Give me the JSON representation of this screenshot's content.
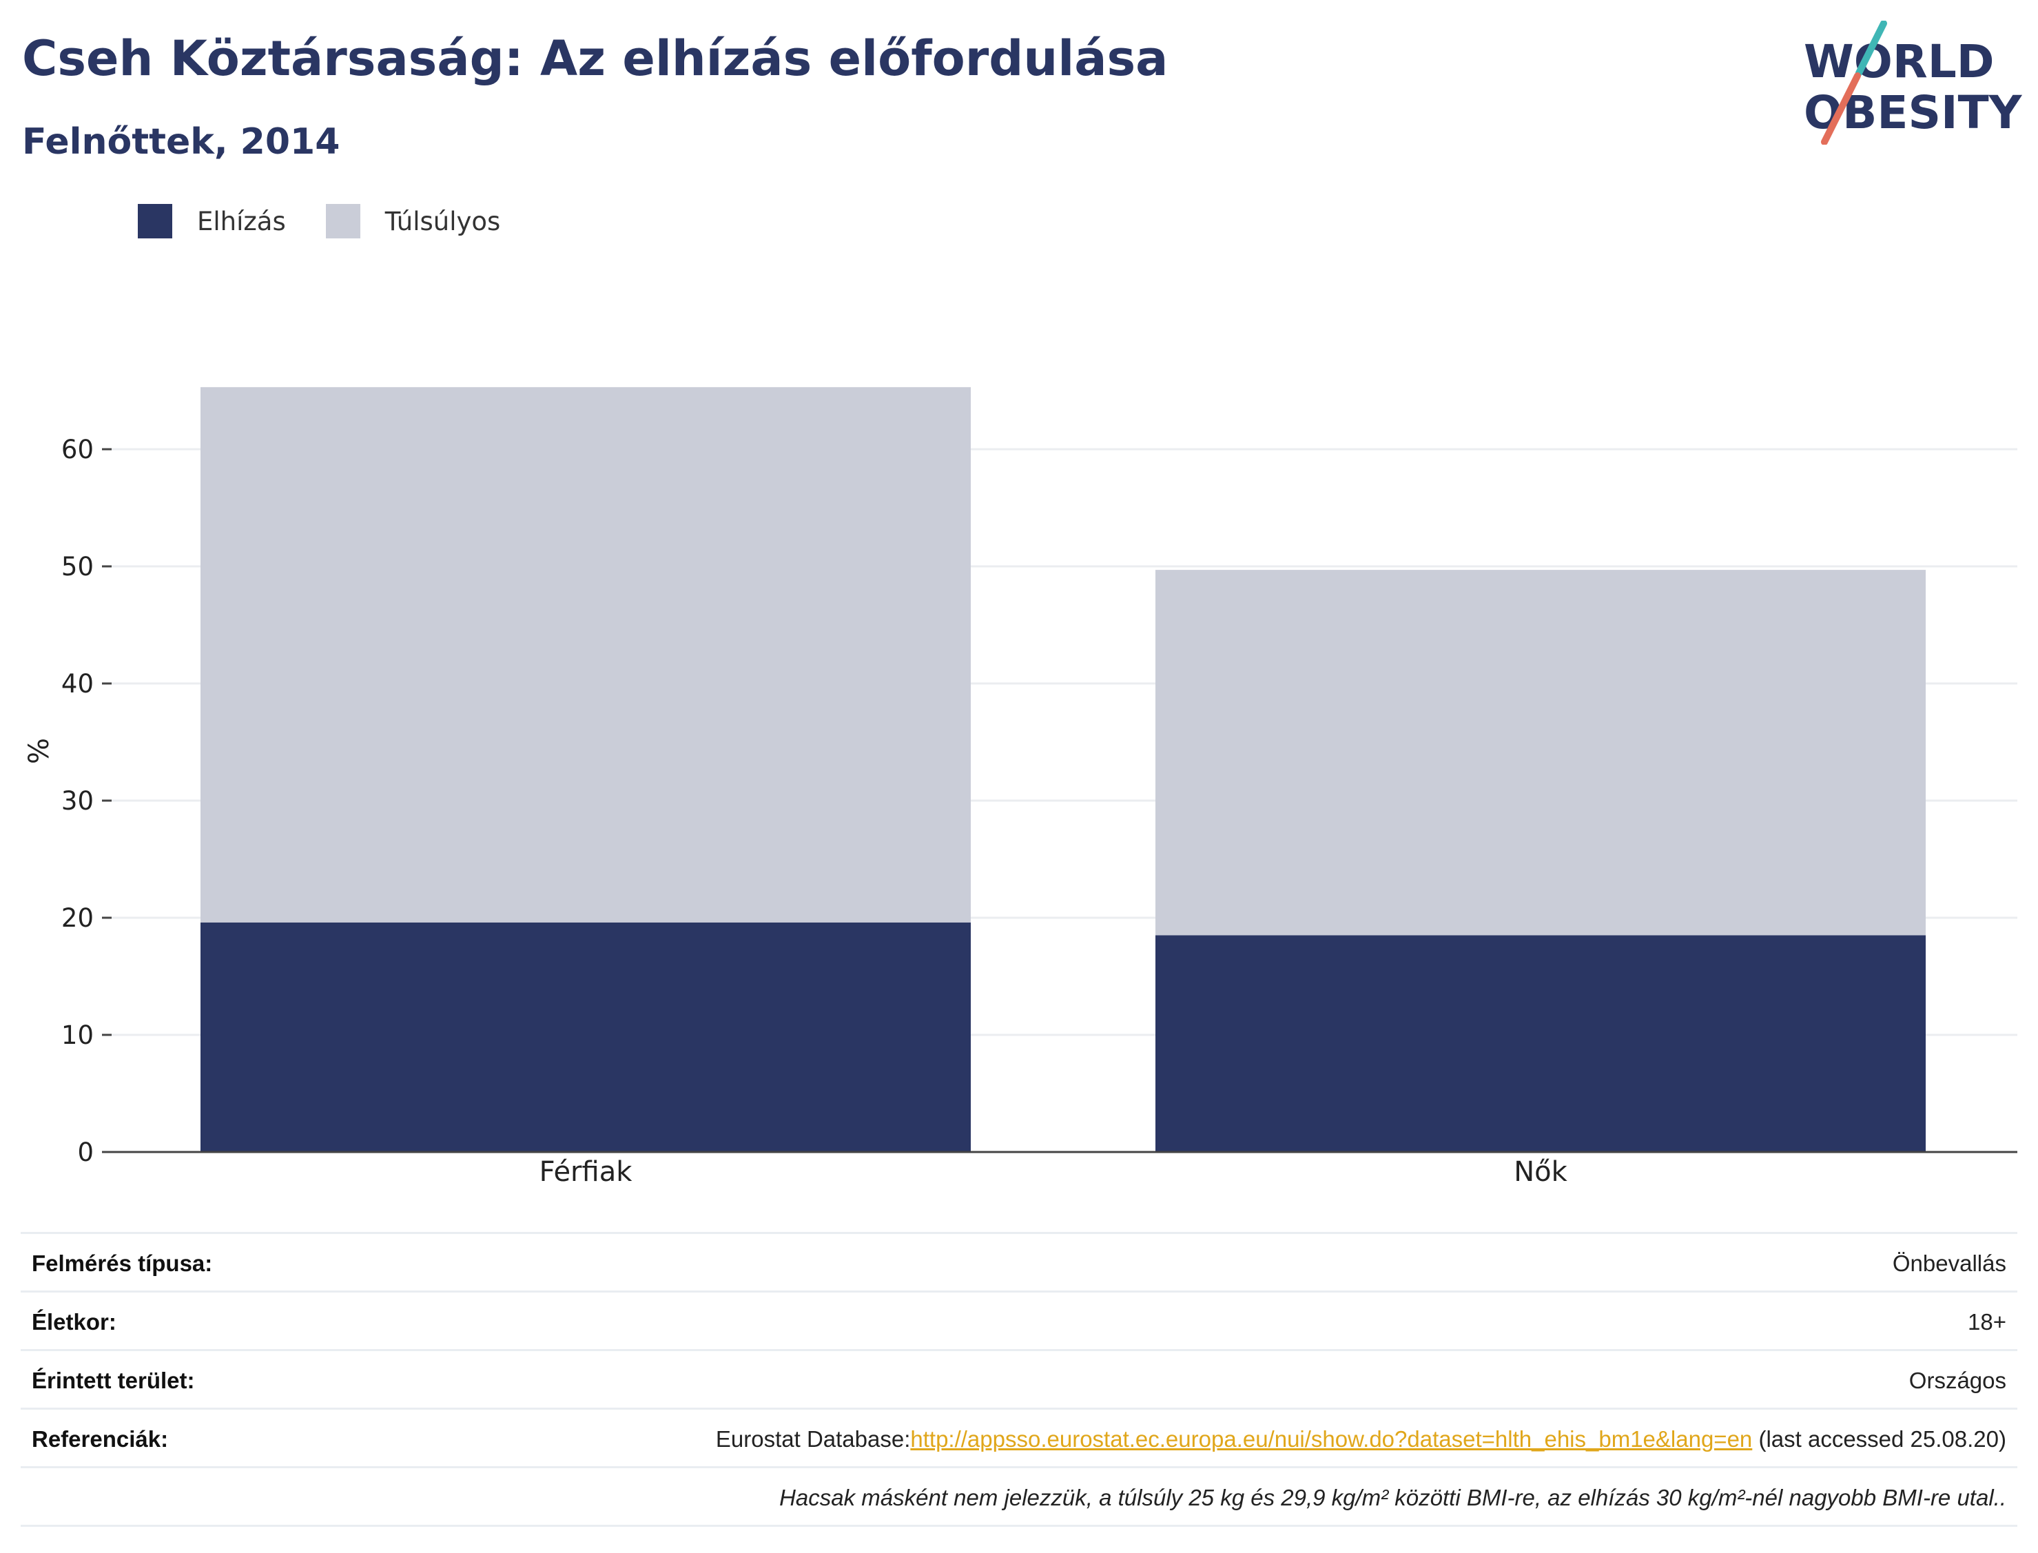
{
  "header": {
    "title": "Cseh Köztársaság: Az elhízás előfordulása",
    "subtitle": "Felnőttek, 2014"
  },
  "logo": {
    "line1": "WORLD",
    "line2": "OBESITY"
  },
  "colors": {
    "obesity": "#2a3663",
    "overweight": "#cacdd8",
    "title": "#2a3663",
    "link": "#e0a61a"
  },
  "chart_data": {
    "type": "bar",
    "stacked": true,
    "categories": [
      "Férfiak",
      "Nők"
    ],
    "series": [
      {
        "name": "Elhízás",
        "values": [
          19.6,
          18.5
        ],
        "color": "#2a3663"
      },
      {
        "name": "Túlsúlyos",
        "values": [
          45.7,
          31.2
        ],
        "color": "#cacdd8"
      }
    ],
    "ylabel": "%",
    "ylim": [
      0,
      68
    ],
    "yticks": [
      0,
      10,
      20,
      30,
      40,
      50,
      60
    ],
    "grid": true,
    "legend": "top-left"
  },
  "info": {
    "rows": [
      {
        "key": "Felmérés típusa:",
        "value": "Önbevallás"
      },
      {
        "key": "Életkor:",
        "value": "18+"
      },
      {
        "key": "Érintett terület:",
        "value": "Országos"
      }
    ],
    "reference": {
      "key": "Referenciák:",
      "prefix": "Eurostat Database:",
      "link": "http://appsso.eurostat.ec.europa.eu/nui/show.do?dataset=hlth_ehis_bm1e&lang=en",
      "suffix": " (last accessed 25.08.20)"
    },
    "note": "Hacsak másként nem jelezzük, a túlsúly 25 kg és 29,9 kg/m² közötti BMI-re, az elhízás 30 kg/m²-nél nagyobb BMI-re utal.."
  }
}
